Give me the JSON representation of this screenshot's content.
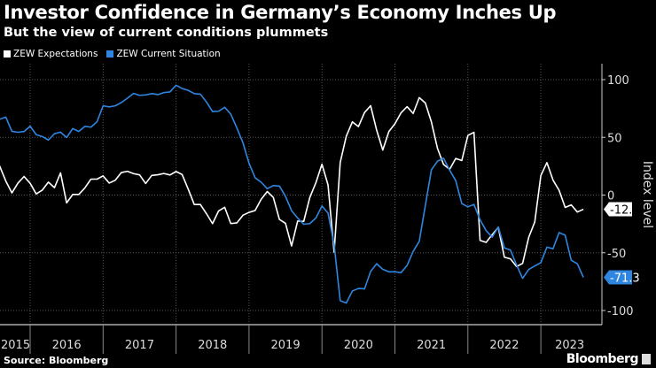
{
  "header": {
    "title": "Investor Confidence in Germany’s Economy Inches Up",
    "subtitle": "But the view of current conditions plummets"
  },
  "footer": {
    "source": "Source: Bloomberg",
    "logo": "Bloomberg"
  },
  "chart_data": {
    "type": "line",
    "title": "Investor Confidence in Germany’s Economy Inches Up",
    "subtitle": "But the view of current conditions plummets",
    "xlabel": "",
    "ylabel": "Index level",
    "ylim": [
      -100,
      100
    ],
    "yticks": [
      100,
      50,
      0,
      -50,
      -100
    ],
    "xticks": [
      "2015",
      "2016",
      "2017",
      "2018",
      "2019",
      "2020",
      "2021",
      "2022",
      "2023"
    ],
    "x_start": "2015-07",
    "x_end": "2023-08",
    "grid": true,
    "legend": "top-left",
    "series": [
      {
        "name": "ZEW Expectations",
        "color": "#ffffff",
        "last_label": "-12.3",
        "values": [
          29.7,
          25.0,
          12.1,
          1.9,
          10.4,
          16.1,
          10.2,
          1.0,
          4.3,
          11.2,
          6.4,
          19.2,
          -6.8,
          0.5,
          0.5,
          6.2,
          13.8,
          13.8,
          16.6,
          10.4,
          12.8,
          19.5,
          20.6,
          18.6,
          17.5,
          10.0,
          17.0,
          17.6,
          18.7,
          17.4,
          20.4,
          17.8,
          5.1,
          -8.2,
          -8.2,
          -16.1,
          -24.7,
          -13.7,
          -10.6,
          -24.7,
          -24.1,
          -17.5,
          -15.0,
          -13.4,
          -3.6,
          3.1,
          -2.1,
          -21.1,
          -24.5,
          -44.1,
          -22.5,
          -22.8,
          -2.1,
          10.7,
          26.7,
          8.7,
          -49.5,
          28.2,
          51.0,
          63.4,
          59.3,
          71.5,
          77.4,
          56.1,
          39.0,
          55.0,
          61.8,
          71.2,
          76.6,
          70.7,
          84.4,
          79.8,
          63.3,
          40.4,
          26.5,
          22.3,
          31.7,
          29.9,
          51.7,
          54.3,
          -39.3,
          -41.0,
          -34.3,
          -28.0,
          -53.8,
          -55.3,
          -61.9,
          -59.2,
          -36.7,
          -23.3,
          16.9,
          28.1,
          13.0,
          4.1,
          -10.7,
          -8.5,
          -14.7,
          -12.3
        ]
      },
      {
        "name": "ZEW Current Situation",
        "color": "#2f86e0",
        "last_label": "-71.3",
        "values": [
          63.9,
          65.7,
          67.5,
          55.2,
          54.4,
          55.0,
          59.7,
          52.3,
          50.7,
          47.7,
          53.1,
          54.5,
          49.8,
          57.6,
          55.1,
          59.5,
          58.8,
          63.5,
          77.3,
          76.4,
          77.3,
          80.1,
          83.9,
          88.0,
          86.4,
          86.7,
          87.9,
          87.0,
          88.8,
          89.3,
          95.2,
          92.3,
          90.7,
          87.9,
          87.4,
          80.6,
          72.4,
          72.6,
          76.0,
          70.1,
          58.2,
          45.3,
          27.6,
          15.0,
          11.1,
          5.5,
          8.2,
          7.8,
          -1.1,
          -13.5,
          -19.9,
          -25.3,
          -24.7,
          -19.9,
          -9.5,
          -15.7,
          -43.1,
          -91.5,
          -93.5,
          -83.1,
          -80.9,
          -81.3,
          -66.2,
          -59.5,
          -64.3,
          -66.5,
          -66.4,
          -67.2,
          -61.0,
          -48.8,
          -40.1,
          -9.1,
          21.9,
          29.3,
          31.9,
          21.6,
          12.5,
          -7.4,
          -10.2,
          -8.1,
          -21.4,
          -30.8,
          -36.5,
          -27.6,
          -45.8,
          -47.6,
          -60.5,
          -72.2,
          -64.5,
          -61.4,
          -58.6,
          -45.1,
          -46.5,
          -32.5,
          -34.8,
          -56.5,
          -59.5,
          -71.3
        ]
      }
    ]
  }
}
